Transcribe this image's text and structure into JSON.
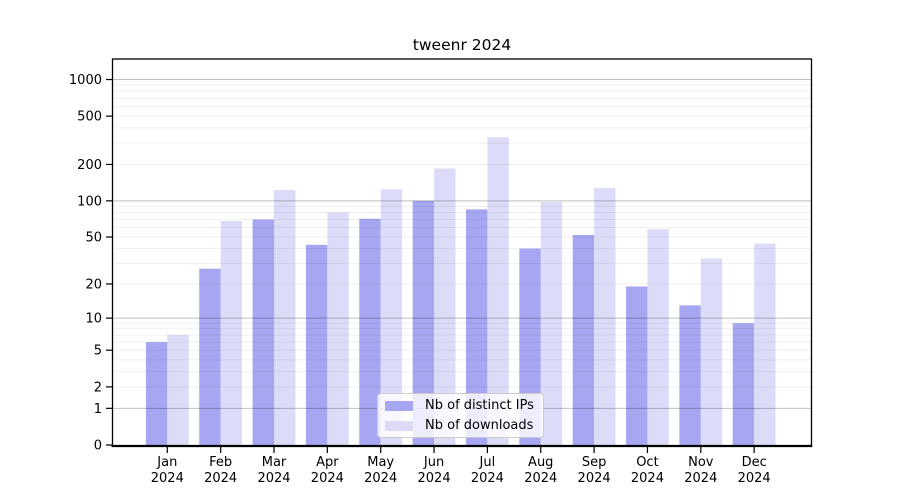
{
  "chart_data": {
    "type": "bar",
    "title": "tweenr 2024",
    "categories": [
      "Jan",
      "Feb",
      "Mar",
      "Apr",
      "May",
      "Jun",
      "Jul",
      "Aug",
      "Sep",
      "Oct",
      "Nov",
      "Dec"
    ],
    "year_label": "2024",
    "series": [
      {
        "name": "Nb of distinct IPs",
        "color": "#a6a6f2",
        "values": [
          6,
          27,
          70,
          43,
          71,
          100,
          85,
          40,
          52,
          19,
          13,
          9
        ]
      },
      {
        "name": "Nb of downloads",
        "color": "#dcdcf8",
        "values": [
          7,
          68,
          123,
          80,
          125,
          185,
          335,
          98,
          128,
          58,
          33,
          44
        ]
      }
    ],
    "xlabel": "",
    "ylabel": "",
    "yscale": "log1p",
    "ylim": [
      0,
      1480
    ],
    "yticks": [
      1000,
      500,
      200,
      100,
      50,
      20,
      10,
      5,
      2,
      1,
      0
    ],
    "grid": "horizontal major at decades, minor at integer multiples",
    "legend_position": "lower center",
    "colors": {
      "grid_major": "rgba(0,0,0,0.25)",
      "grid_minor": "rgba(0,0,0,0.06)",
      "frame": "#000000",
      "background": "#ffffff"
    }
  }
}
